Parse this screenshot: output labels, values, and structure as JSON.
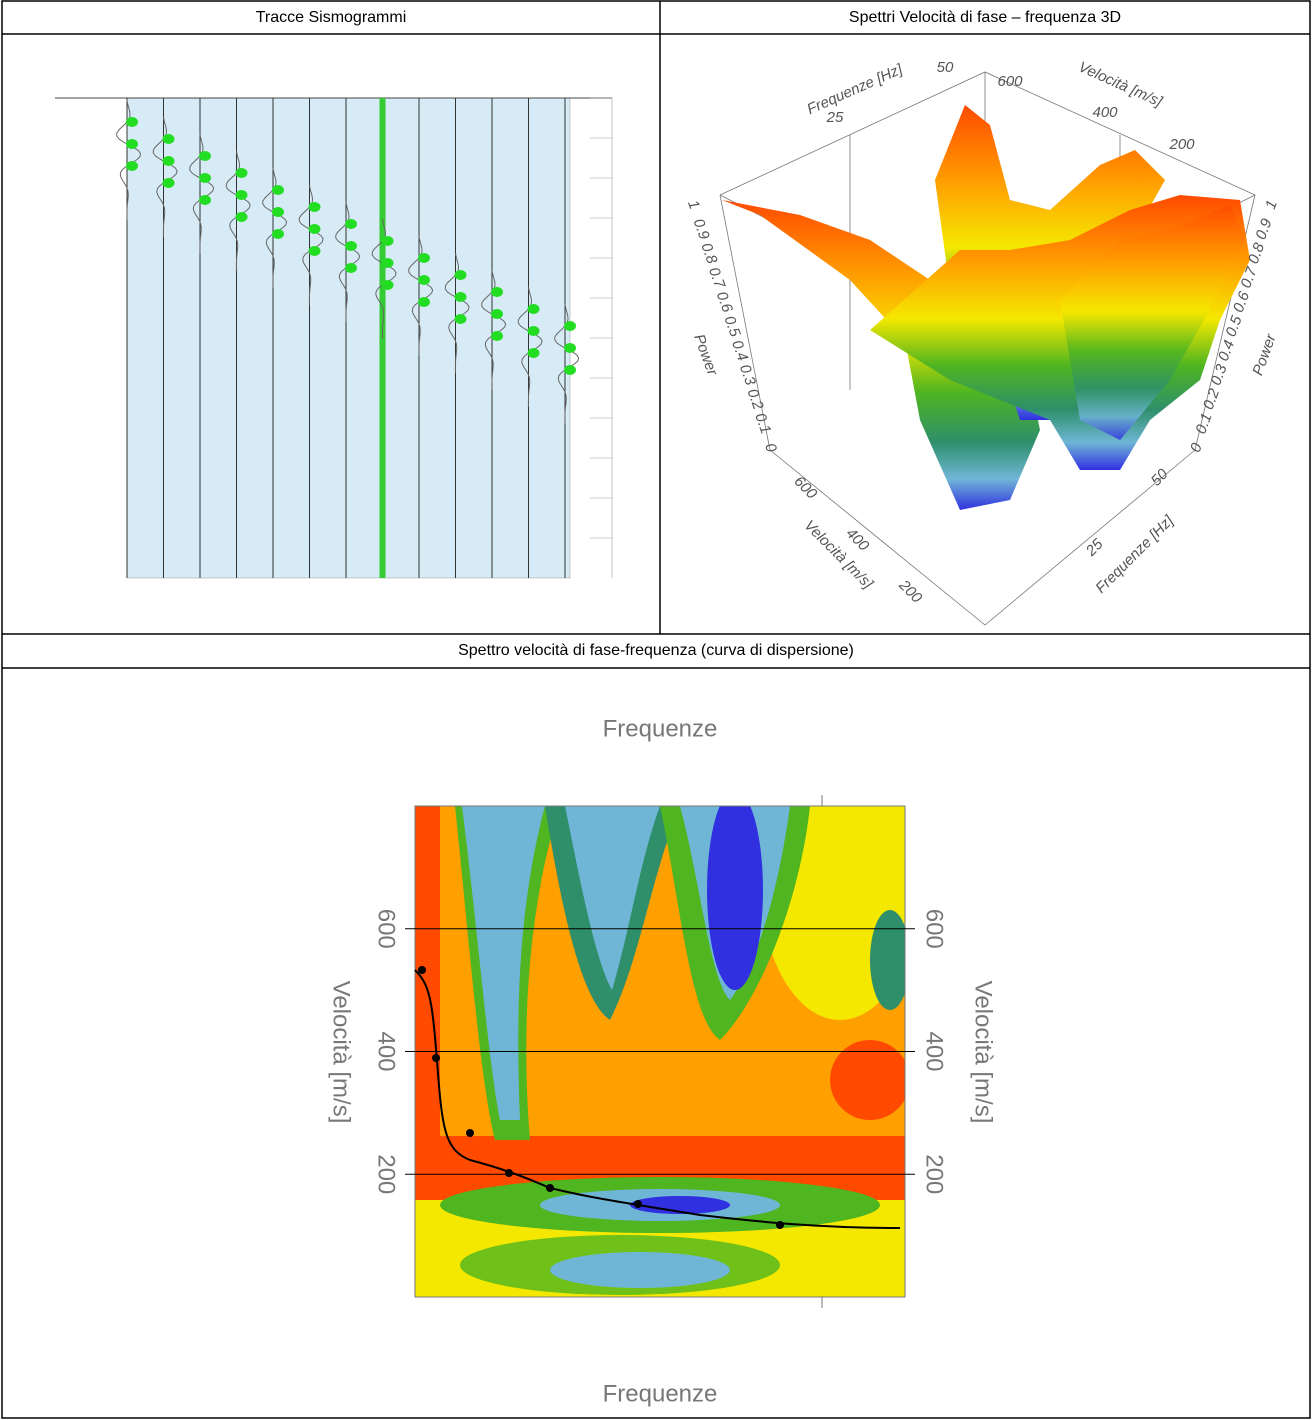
{
  "table": {
    "headers": [
      "Tracce Sismogrammi",
      "Spettri Velocità di fase – frequenza 3D",
      "Spettro velocità di fase-frequenza (curva di dispersione)"
    ]
  },
  "spectrum3d": {
    "frequency_label": "Frequenze [Hz]",
    "velocity_label": "Velocità [m/s]",
    "power_label": "Power",
    "frequency_ticks": [
      25,
      50
    ],
    "velocity_ticks": [
      200,
      400,
      600
    ],
    "power_ticks": [
      0,
      0.1,
      0.2,
      0.3,
      0.4,
      0.5,
      0.6,
      0.7,
      0.8,
      0.9,
      1
    ]
  },
  "dispersion": {
    "title": "Frequenze",
    "x_label": "Frequenze",
    "y_label": "Velocità [m/s]",
    "ylim": [
      0,
      800
    ],
    "yticks": [
      200,
      400,
      600
    ]
  }
}
